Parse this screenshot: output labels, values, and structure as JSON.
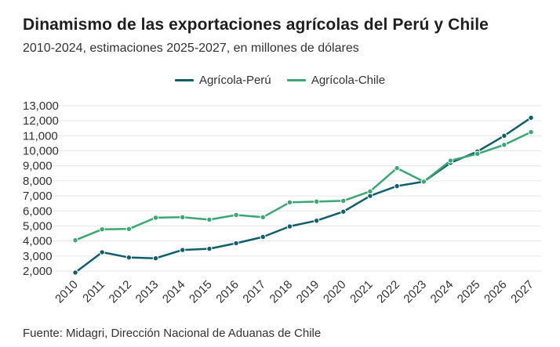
{
  "title": "Dinamismo de las exportaciones agrícolas del Perú y Chile",
  "subtitle": "2010-2024, estimaciones 2025-2027, en millones de dólares",
  "source": "Fuente: Midagri, Dirección Nacional de Aduanas de Chile",
  "colors": {
    "peru": "#0f5f6b",
    "chile": "#3aa774",
    "grid": "#e6e6e6"
  },
  "chart_data": {
    "type": "line",
    "x": [
      "2010",
      "2011",
      "2012",
      "2013",
      "2014",
      "2015",
      "2016",
      "2017",
      "2018",
      "2019",
      "2020",
      "2021",
      "2022",
      "2023",
      "2024",
      "2025",
      "2026",
      "2027"
    ],
    "ylim": [
      1500,
      13000
    ],
    "y_ticks": [
      2000,
      3000,
      4000,
      5000,
      6000,
      7000,
      8000,
      9000,
      10000,
      11000,
      12000,
      13000
    ],
    "y_tick_labels": [
      "2,000",
      "3,000",
      "4,000",
      "5,000",
      "6,000",
      "7,000",
      "8,000",
      "9,000",
      "10,000",
      "11,000",
      "12,000",
      "13,000"
    ],
    "grid": true,
    "legend_position": "top-center",
    "series": [
      {
        "name": "Agrícola-Perú",
        "color_key": "peru",
        "values": [
          1900,
          3250,
          2900,
          2850,
          3400,
          3480,
          3850,
          4270,
          4970,
          5350,
          5950,
          7000,
          7650,
          7950,
          9200,
          9950,
          11000,
          12200
        ]
      },
      {
        "name": "Agrícola-Chile",
        "color_key": "chile",
        "values": [
          4050,
          4780,
          4800,
          5550,
          5580,
          5420,
          5730,
          5580,
          6570,
          6620,
          6670,
          7300,
          8850,
          7950,
          9350,
          9800,
          10400,
          11250
        ]
      }
    ]
  }
}
